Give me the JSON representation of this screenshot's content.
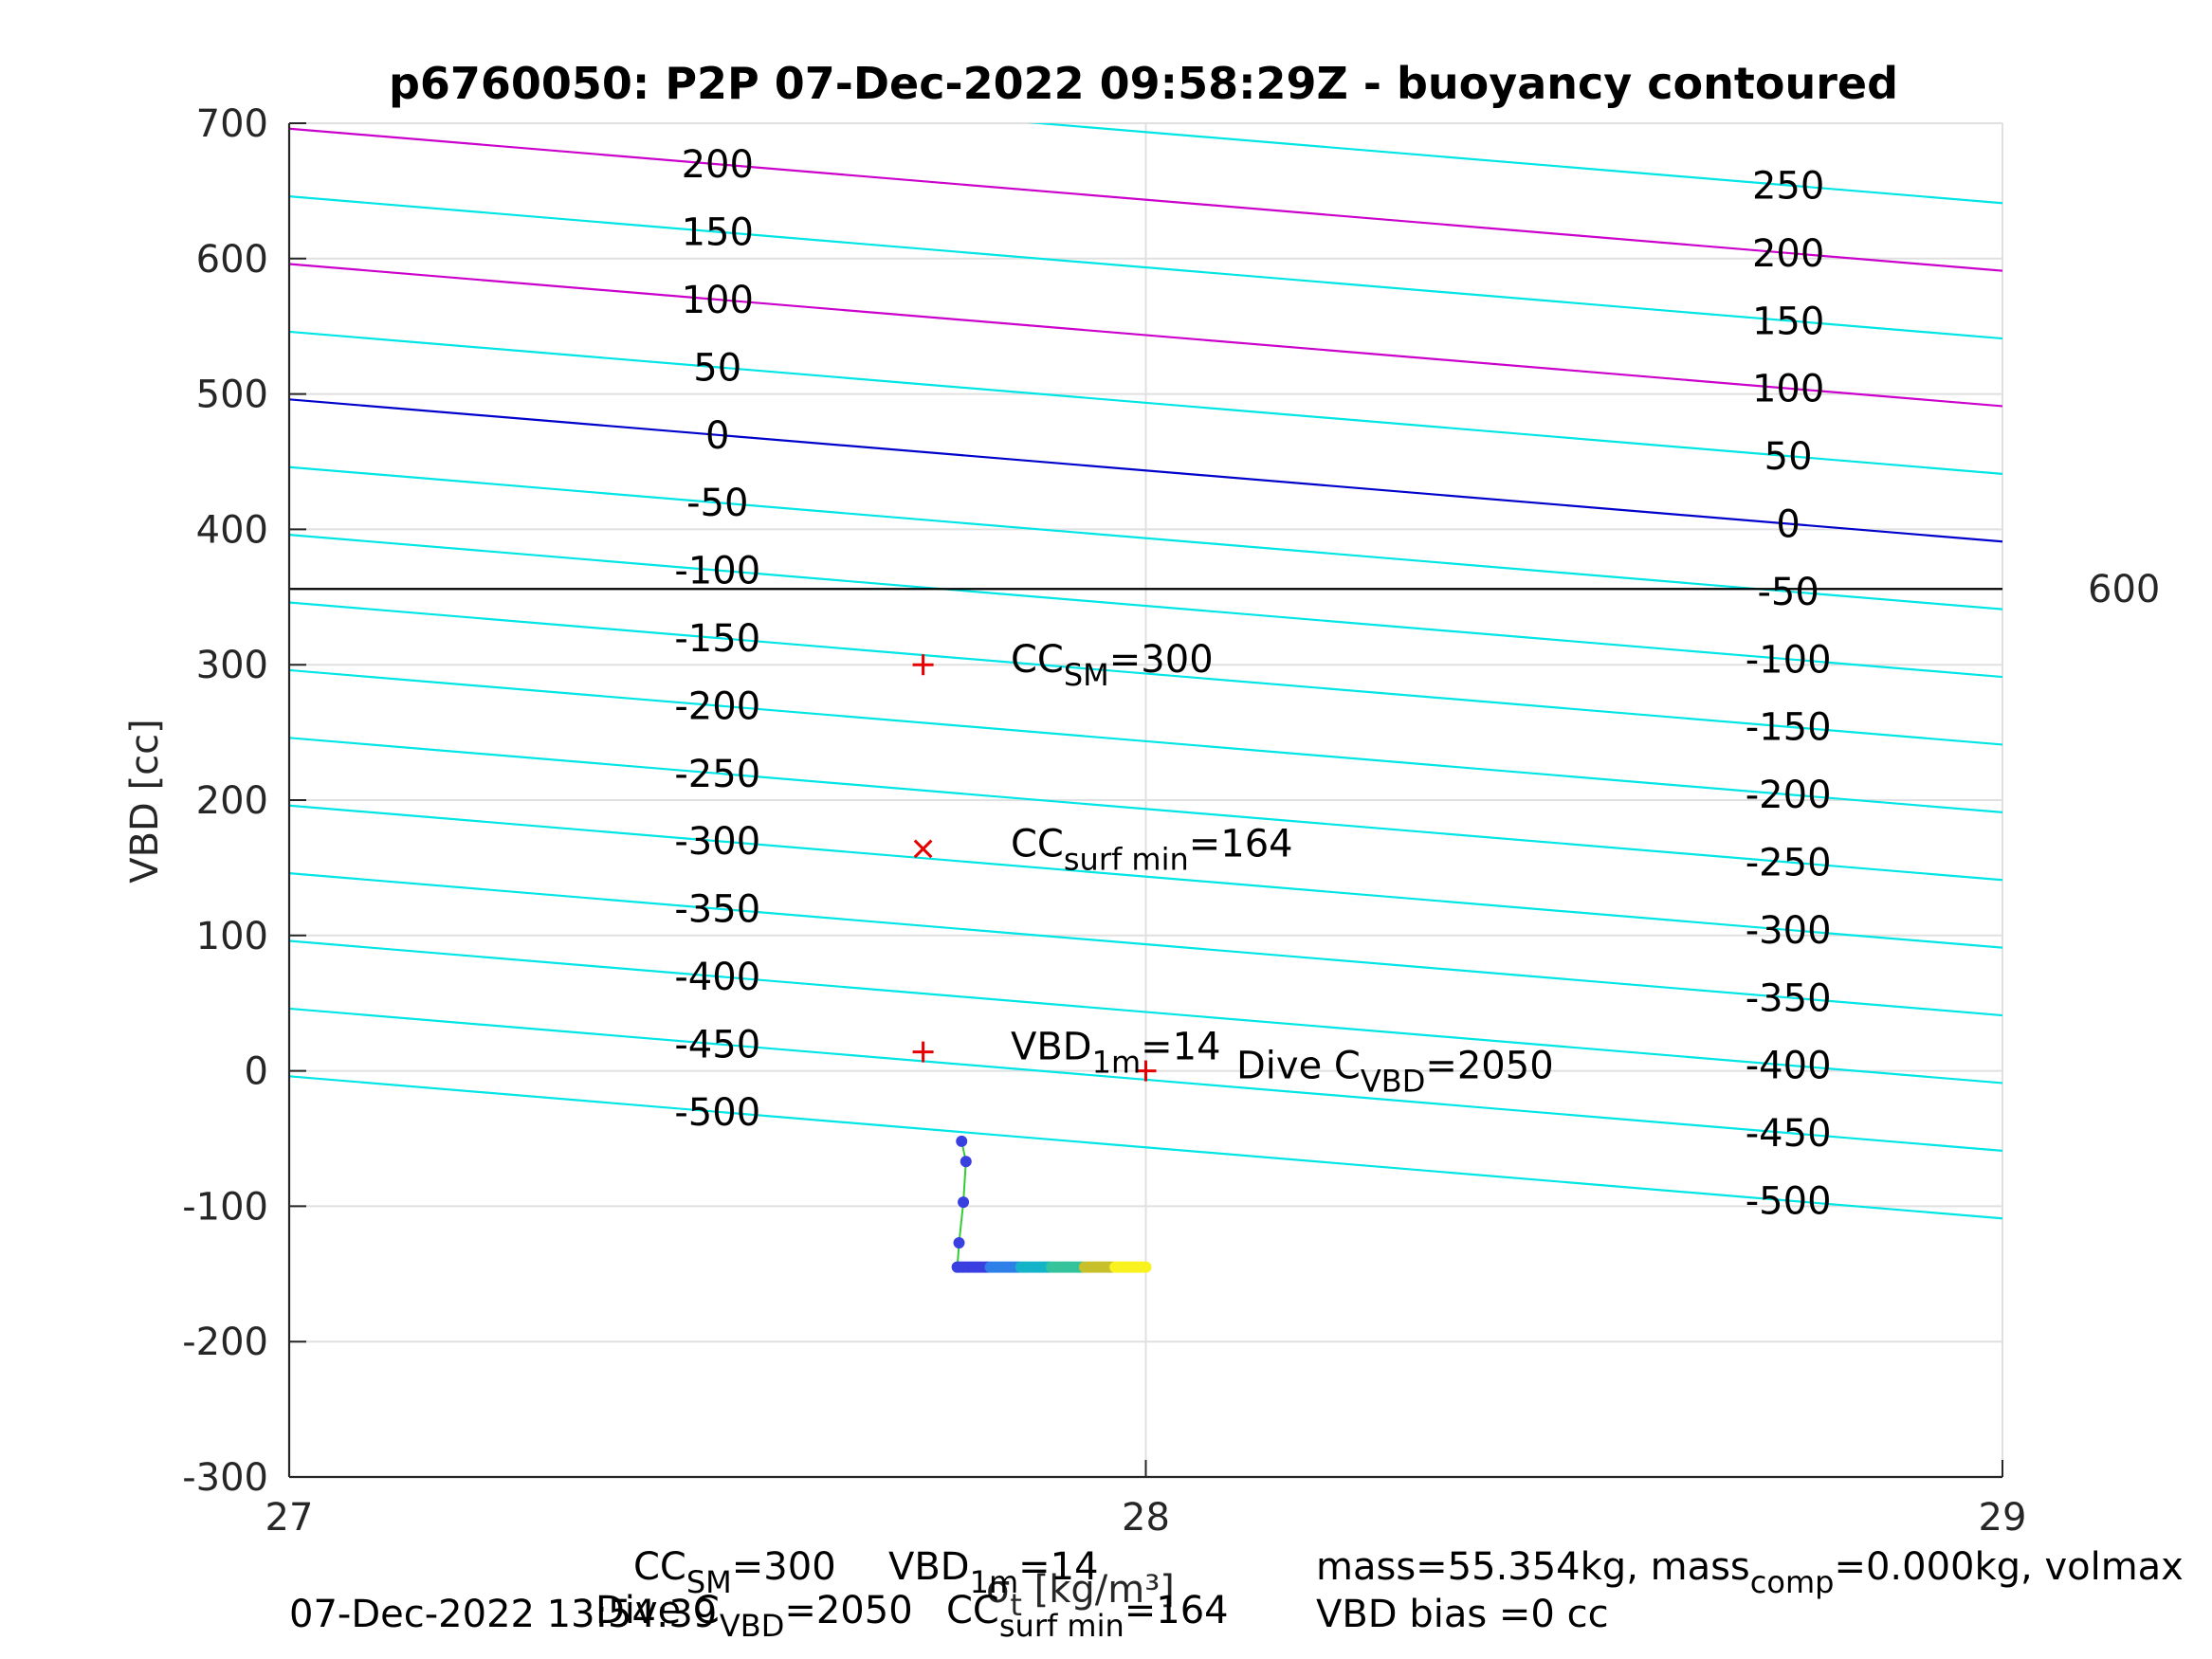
{
  "chart_data": {
    "type": "line",
    "title": "p6760050: P2P 07-Dec-2022 09:58:29Z - buoyancy contoured",
    "xlabel": "σ_t [kg/m³]",
    "ylabel": "VBD [cc]",
    "xlim": [
      27,
      29
    ],
    "ylim": [
      -300,
      700
    ],
    "x_ticks": [
      "27",
      "28",
      "29"
    ],
    "y_ticks": [
      "-300",
      "-200",
      "-100",
      "0",
      "100",
      "200",
      "300",
      "400",
      "500",
      "600",
      "700"
    ],
    "grid": true,
    "contour_slope_cc_per_unit": -52.5,
    "contour_levels": [
      -500,
      -450,
      -400,
      -350,
      -300,
      -250,
      -200,
      -150,
      -100,
      -50,
      0,
      50,
      100,
      150,
      200,
      250
    ],
    "contour_intercepts_at_27": [
      -4,
      46,
      96,
      146,
      196,
      246,
      296,
      346,
      396,
      446,
      496,
      546,
      596,
      646,
      696,
      746
    ],
    "special_levels": [
      {
        "level": 0,
        "color": "#0000cc"
      },
      {
        "level": 100,
        "color": "#cc00cc"
      },
      {
        "level": 200,
        "color": "#cc00cc"
      }
    ],
    "contour_color": "#00e5e5",
    "left_labels": [
      "200",
      "150",
      "100",
      "50",
      "0",
      "-50",
      "-100",
      "-150",
      "-200",
      "-250",
      "-300",
      "-350",
      "-400",
      "-450",
      "-500"
    ],
    "right_labels": [
      "250",
      "200",
      "150",
      "100",
      "50",
      "0",
      "-50",
      "-100",
      "-150",
      "-200",
      "-250",
      "-300",
      "-350",
      "-400",
      "-450",
      "-500"
    ],
    "hline": {
      "y": 356,
      "label": "600",
      "color": "#000000"
    },
    "markers": [
      {
        "x": 27.74,
        "y": 300,
        "symbol": "+",
        "color": "#e60000"
      },
      {
        "x": 27.74,
        "y": 164,
        "symbol": "x",
        "color": "#e60000"
      },
      {
        "x": 27.74,
        "y": 14,
        "symbol": "+",
        "color": "#e60000"
      },
      {
        "x": 28.0,
        "y": 0,
        "symbol": "+",
        "color": "#e60000"
      }
    ],
    "annotations": [
      {
        "main": "CC",
        "sub": "SM",
        "tail": "=300"
      },
      {
        "main": "CC",
        "sub": "surf min",
        "tail": "=164"
      },
      {
        "main": "VBD",
        "sub": "1m",
        "tail": "=14"
      },
      {
        "main": "Dive C",
        "sub": "VBD",
        "tail": "=2050"
      }
    ],
    "profile": {
      "vertical_x": [
        27.785,
        27.79,
        27.787,
        27.782,
        27.78
      ],
      "vertical_y": [
        -52,
        -67,
        -97,
        -127,
        -145
      ],
      "horizontal_y": -145,
      "horizontal_x_start": 27.78,
      "horizontal_x_end": 28.0,
      "colors": [
        "#3a3fe0",
        "#2f7fe8",
        "#14b3c8",
        "#34c39a",
        "#c8c02a",
        "#f9f21e"
      ],
      "line_color": "#33cc33"
    }
  },
  "footer": {
    "timestamp": "07-Dec-2022 13:54:39",
    "row1_left": {
      "main": "CC",
      "sub": "SM",
      "tail": "=300"
    },
    "row1_mid": {
      "main": "VBD",
      "sub": "1m",
      "tail": "=14"
    },
    "row2_left": {
      "main": "Dive C",
      "sub": "VBD",
      "tail": "=2050"
    },
    "row2_mid": {
      "main": "CC",
      "sub": "surf min",
      "tail": "=164"
    },
    "mass_line": {
      "pre": "mass=55.354kg, mass",
      "sub": "comp",
      "tail": "=0.000kg, volmax"
    },
    "bias_line": "VBD bias =0 cc"
  }
}
